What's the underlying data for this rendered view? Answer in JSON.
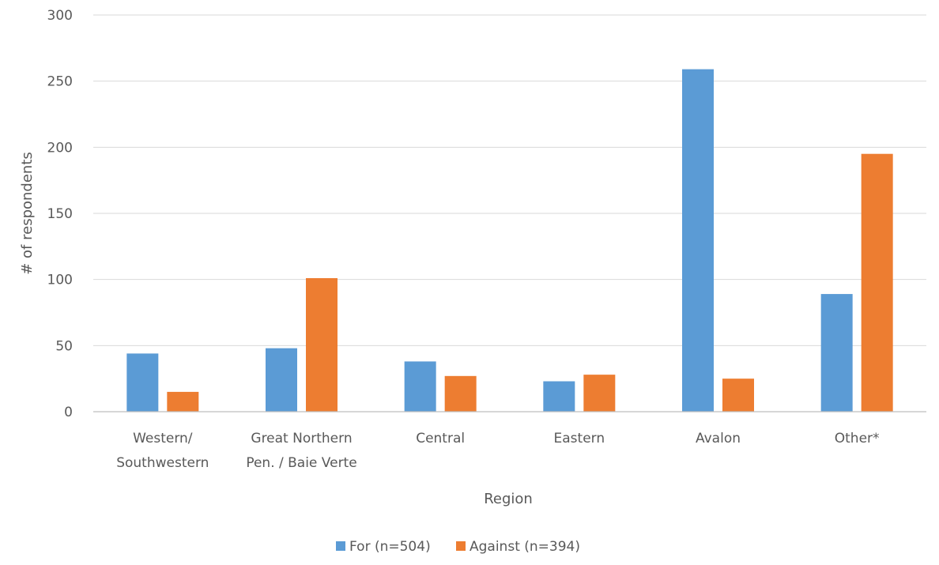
{
  "chart_data": {
    "type": "bar",
    "title": "",
    "xlabel": "Region",
    "ylabel": "# of respondents",
    "ylim": [
      0,
      300
    ],
    "yticks": [
      0,
      50,
      100,
      150,
      200,
      250,
      300
    ],
    "grid": true,
    "legend_position": "bottom",
    "categories": [
      [
        "Western/",
        "Southwestern"
      ],
      [
        "Great Northern",
        "Pen. / Baie Verte"
      ],
      [
        "Central"
      ],
      [
        "Eastern"
      ],
      [
        "Avalon"
      ],
      [
        "Other*"
      ]
    ],
    "series": [
      {
        "name": "For (n=504)",
        "color": "#5b9bd5",
        "values": [
          44,
          48,
          38,
          23,
          259,
          89
        ]
      },
      {
        "name": "Against (n=394)",
        "color": "#ed7d31",
        "values": [
          15,
          101,
          27,
          28,
          25,
          195
        ]
      }
    ]
  }
}
